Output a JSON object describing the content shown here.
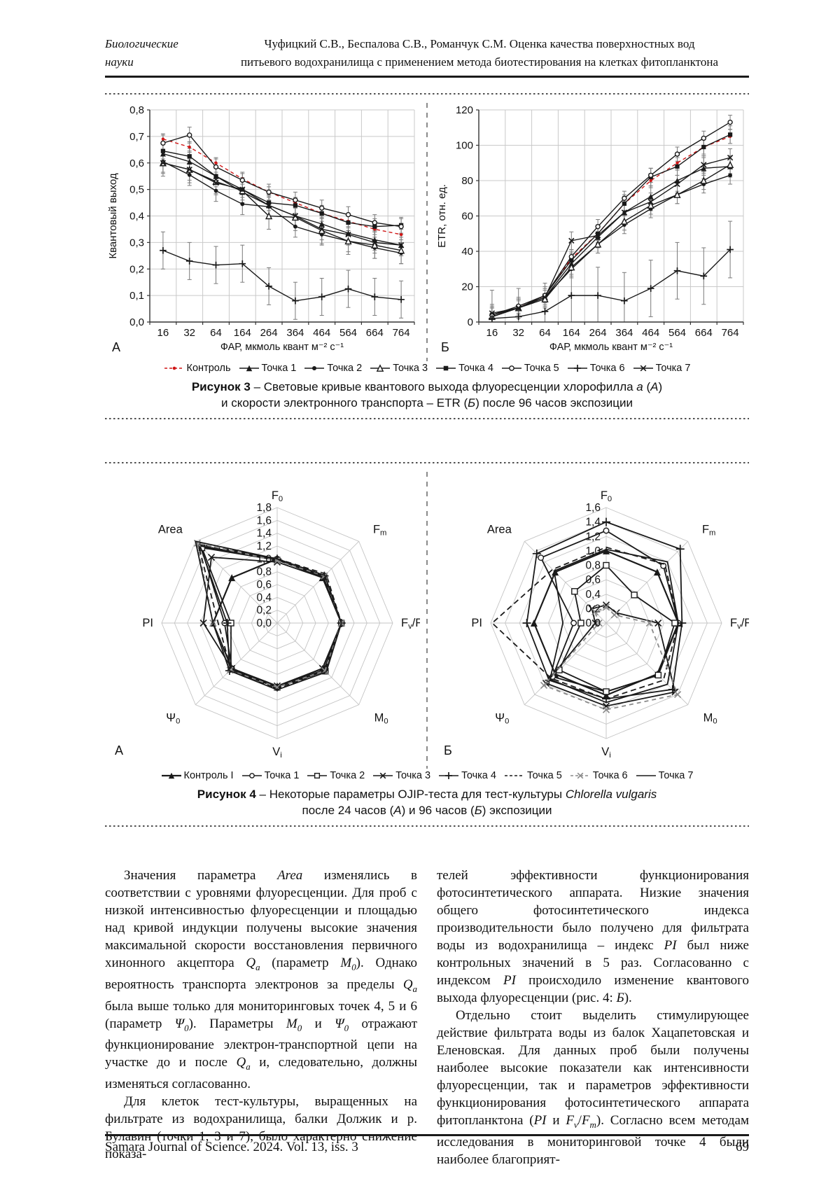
{
  "header": {
    "section_line1": "Биологические",
    "section_line2": "науки",
    "title_line1": "Чуфицкий С.В., Беспалова С.В., Романчук С.М. Оценка качества поверхностных вод",
    "title_line2": "питьевого водохранилища с применением метода биотестирования на клетках фитопланктона"
  },
  "figure3": {
    "caption_line1": "[b]Рисунок 3[/b] – Световые кривые квантового выхода флуоресценции хлорофилла [i]a[/i] ([i]А[/i])",
    "caption_line2": "и скорости электронного транспорта – ETR ([i]Б[/i]) после 96 часов экспозиции"
  },
  "figure4": {
    "caption_line1": "[b]Рисунок 4[/b] – Некоторые параметры OJIP-теста для тест-культуры [i]Chlorella vulgaris[/i]",
    "caption_line2": "после 24 часов ([i]А[/i]) и 96 часов ([i]Б[/i]) экспозиции"
  },
  "chart_data": [
    {
      "id": "fig3A",
      "type": "line",
      "panel_label": "А",
      "xlabel": "ФАР, мкмоль квант м⁻² с⁻¹",
      "ylabel": "Квантовый выход",
      "categories": [
        "16",
        "32",
        "64",
        "164",
        "264",
        "364",
        "464",
        "564",
        "664",
        "764"
      ],
      "ylim": [
        0,
        0.8
      ],
      "yticks": [
        [
          0,
          "0,0"
        ],
        [
          0.1,
          "0,1"
        ],
        [
          0.2,
          "0,2"
        ],
        [
          0.3,
          "0,3"
        ],
        [
          0.4,
          "0,4"
        ],
        [
          0.5,
          "0,5"
        ],
        [
          0.6,
          "0,6"
        ],
        [
          0.7,
          "0,7"
        ],
        [
          0.8,
          "0,8"
        ]
      ],
      "grid": true,
      "series": [
        {
          "name": "Контроль",
          "marker": "dot",
          "color": "#d01616",
          "dash": "5,4",
          "err": 0.02,
          "values": [
            0.69,
            0.66,
            0.6,
            0.54,
            0.49,
            0.45,
            0.41,
            0.38,
            0.35,
            0.33
          ]
        },
        {
          "name": "Точка 1",
          "marker": "tri",
          "color": "#1a1a1a",
          "err": 0.04,
          "values": [
            0.635,
            0.605,
            0.55,
            0.49,
            0.44,
            0.4,
            0.37,
            0.335,
            0.31,
            0.29
          ]
        },
        {
          "name": "Точка 2",
          "marker": "circle",
          "color": "#1a1a1a",
          "err": 0.04,
          "values": [
            0.605,
            0.555,
            0.495,
            0.445,
            0.435,
            0.36,
            0.33,
            0.305,
            0.28,
            0.26
          ]
        },
        {
          "name": "Точка 3",
          "marker": "tri-open",
          "color": "#1a1a1a",
          "err": 0.05,
          "values": [
            0.6,
            0.575,
            0.53,
            0.495,
            0.4,
            0.395,
            0.345,
            0.305,
            0.29,
            0.27
          ]
        },
        {
          "name": "Точка 4",
          "marker": "square",
          "color": "#1a1a1a",
          "err": 0.03,
          "values": [
            0.645,
            0.625,
            0.55,
            0.5,
            0.45,
            0.44,
            0.41,
            0.375,
            0.36,
            0.365
          ]
        },
        {
          "name": "Точка 5",
          "marker": "circle-open",
          "color": "#1a1a1a",
          "err": 0.03,
          "values": [
            0.675,
            0.705,
            0.585,
            0.535,
            0.49,
            0.46,
            0.43,
            0.405,
            0.375,
            0.36
          ]
        },
        {
          "name": "Точка 6",
          "marker": "plus",
          "color": "#1a1a1a",
          "err": 0.07,
          "values": [
            0.27,
            0.23,
            0.215,
            0.22,
            0.135,
            0.08,
            0.095,
            0.125,
            0.095,
            0.085
          ]
        },
        {
          "name": "Точка 7",
          "marker": "x",
          "color": "#1a1a1a",
          "err": 0.04,
          "values": [
            0.6,
            0.575,
            0.525,
            0.5,
            0.44,
            0.4,
            0.35,
            0.33,
            0.3,
            0.29
          ]
        }
      ]
    },
    {
      "id": "fig3B",
      "type": "line",
      "panel_label": "Б",
      "xlabel": "ФАР, мкмоль квант м⁻² с⁻¹",
      "ylabel": "ETR, отн. ед.",
      "categories": [
        "16",
        "32",
        "64",
        "164",
        "264",
        "364",
        "464",
        "564",
        "664",
        "764"
      ],
      "ylim": [
        0,
        120
      ],
      "yticks": [
        [
          0,
          "0"
        ],
        [
          20,
          "20"
        ],
        [
          40,
          "40"
        ],
        [
          60,
          "60"
        ],
        [
          80,
          "80"
        ],
        [
          100,
          "100"
        ],
        [
          120,
          "120"
        ]
      ],
      "grid": true,
      "series": [
        {
          "name": "Контроль",
          "marker": "dot",
          "color": "#d01616",
          "dash": "5,4",
          "err": 4,
          "values": [
            4,
            8,
            15,
            36,
            50,
            67,
            80,
            90,
            99,
            105
          ]
        },
        {
          "name": "Точка 1",
          "marker": "tri",
          "color": "#1a1a1a",
          "err": 6,
          "values": [
            3,
            8,
            14,
            33,
            48,
            62,
            71,
            80,
            87,
            88
          ]
        },
        {
          "name": "Точка 2",
          "marker": "circle",
          "color": "#1a1a1a",
          "err": 5,
          "values": [
            3,
            8,
            14,
            30,
            44,
            55,
            64,
            72,
            78,
            83
          ]
        },
        {
          "name": "Точка 3",
          "marker": "tri-open",
          "color": "#1a1a1a",
          "err": 5,
          "values": [
            3,
            8,
            13,
            31,
            44,
            57,
            66,
            72,
            80,
            89
          ]
        },
        {
          "name": "Точка 4",
          "marker": "square",
          "color": "#1a1a1a",
          "err": 5,
          "values": [
            4,
            8,
            15,
            35,
            50,
            67,
            82,
            88,
            99,
            106
          ]
        },
        {
          "name": "Точка 5",
          "marker": "circle-open",
          "color": "#1a1a1a",
          "err": 4,
          "values": [
            4,
            9,
            15,
            37,
            54,
            70,
            83,
            95,
            104,
            113
          ]
        },
        {
          "name": "Точка 6",
          "marker": "plus",
          "color": "#1a1a1a",
          "err": 16,
          "values": [
            2,
            3,
            6,
            15,
            15,
            12,
            19,
            29,
            26,
            41
          ]
        },
        {
          "name": "Точка 7",
          "marker": "x",
          "color": "#1a1a1a",
          "err": 5,
          "values": [
            5,
            8,
            14,
            46,
            49,
            62,
            68,
            78,
            89,
            93
          ]
        }
      ]
    },
    {
      "id": "fig4A",
      "type": "radar",
      "panel_label": "А",
      "axes": [
        "F[sub]0[/sub]",
        "F[sub]m[/sub]",
        "F[sub]v[/sub]/F[sub]m[/sub]",
        "M[sub]0[/sub]",
        "V[sub]i[/sub]",
        "Ψ[sub]0[/sub]",
        "PI",
        "Area"
      ],
      "rmax": 1.8,
      "rstep": 0.2,
      "rticks": [
        [
          1.8,
          "1,8"
        ],
        [
          1.6,
          "1,6"
        ],
        [
          1.4,
          "1,4"
        ],
        [
          1.2,
          "1,2"
        ],
        [
          1.0,
          "1,0"
        ],
        [
          0.8,
          "0,8"
        ],
        [
          0.6,
          "0,6"
        ],
        [
          0.4,
          "0,4"
        ],
        [
          0.2,
          "0,2"
        ],
        [
          0,
          "0,0"
        ]
      ],
      "series": [
        {
          "name": "Контроль I",
          "marker": "tri",
          "color": "#1a1a1a",
          "width": 2.2,
          "values": [
            1.0,
            1.0,
            1.0,
            1.0,
            1.0,
            1.0,
            1.0,
            1.0
          ]
        },
        {
          "name": "Точка 1",
          "marker": "circle-open",
          "color": "#1a1a1a",
          "values": [
            1.0,
            1.02,
            1.0,
            1.03,
            1.0,
            1.0,
            0.82,
            1.68
          ]
        },
        {
          "name": "Точка 2",
          "marker": "square-open",
          "color": "#1a1a1a",
          "values": [
            0.98,
            1.03,
            1.0,
            1.06,
            1.0,
            1.02,
            0.72,
            1.66
          ]
        },
        {
          "name": "Точка 3",
          "marker": "x",
          "color": "#1a1a1a",
          "values": [
            0.95,
            1.0,
            1.0,
            1.0,
            0.98,
            1.0,
            1.15,
            1.45
          ]
        },
        {
          "name": "Точка 4",
          "marker": "plus",
          "color": "#1a1a1a",
          "values": [
            1.0,
            1.04,
            1.0,
            1.04,
            1.0,
            1.05,
            0.78,
            1.7
          ]
        },
        {
          "name": "Точка 5",
          "marker": null,
          "color": "#1a1a1a",
          "dash": "8,5",
          "values": [
            1.0,
            1.08,
            1.0,
            1.05,
            1.03,
            1.02,
            0.92,
            1.74
          ]
        },
        {
          "name": "Точка 6",
          "marker": "x",
          "color": "#8a8a8a",
          "dash": "6,5",
          "values": [
            0.97,
            1.04,
            1.0,
            1.05,
            1.0,
            1.04,
            1.0,
            1.76
          ]
        },
        {
          "name": "Точка 7",
          "marker": null,
          "color": "#1a1a1a",
          "values": [
            1.0,
            1.05,
            1.0,
            1.08,
            1.04,
            1.05,
            1.0,
            1.8
          ]
        }
      ]
    },
    {
      "id": "fig4B",
      "type": "radar",
      "panel_label": "Б",
      "axes": [
        "F[sub]0[/sub]",
        "F[sub]m[/sub]",
        "F[sub]v[/sub]/F[sub]m[/sub]",
        "M[sub]0[/sub]",
        "V[sub]i[/sub]",
        "Ψ[sub]0[/sub]",
        "PI",
        "Area"
      ],
      "rmax": 1.6,
      "rstep": 0.2,
      "rticks": [
        [
          1.6,
          "1,6"
        ],
        [
          1.4,
          "1,4"
        ],
        [
          1.2,
          "1,2"
        ],
        [
          1.0,
          "1,0"
        ],
        [
          0.8,
          "0,8"
        ],
        [
          0.6,
          "0,6"
        ],
        [
          0.4,
          "0,4"
        ],
        [
          0.2,
          "0,2"
        ],
        [
          0,
          "0,0"
        ]
      ],
      "series": [
        {
          "name": "Контроль I",
          "marker": "tri",
          "color": "#1a1a1a",
          "width": 2.2,
          "values": [
            1.0,
            1.0,
            1.0,
            1.0,
            1.0,
            1.0,
            1.0,
            1.0
          ]
        },
        {
          "name": "Точка 1",
          "marker": "circle-open",
          "color": "#1a1a1a",
          "values": [
            1.28,
            1.12,
            1.0,
            1.02,
            0.95,
            1.05,
            0.45,
            1.28
          ]
        },
        {
          "name": "Точка 2",
          "marker": "square-open",
          "color": "#1a1a1a",
          "values": [
            0.8,
            0.55,
            0.95,
            1.02,
            0.95,
            0.92,
            0.35,
            0.62
          ]
        },
        {
          "name": "Точка 3",
          "marker": "x",
          "color": "#1a1a1a",
          "values": [
            0.25,
            0.2,
            0.72,
            1.35,
            1.15,
            1.18,
            0.15,
            0.28
          ]
        },
        {
          "name": "Точка 4",
          "marker": "plus",
          "color": "#1a1a1a",
          "values": [
            1.4,
            1.45,
            1.05,
            1.3,
            1.05,
            1.12,
            1.1,
            1.36
          ]
        },
        {
          "name": "Точка 5",
          "marker": null,
          "color": "#1a1a1a",
          "dash": "8,5",
          "values": [
            1.05,
            1.15,
            1.0,
            1.12,
            1.05,
            1.08,
            1.58,
            1.05
          ]
        },
        {
          "name": "Точка 6",
          "marker": "x",
          "color": "#8a8a8a",
          "dash": "6,5",
          "values": [
            0.22,
            0.16,
            0.6,
            1.4,
            1.2,
            1.22,
            0.1,
            0.22
          ]
        },
        {
          "name": "Точка 7",
          "marker": null,
          "color": "#1a1a1a",
          "values": [
            1.02,
            1.2,
            1.0,
            1.2,
            1.1,
            1.1,
            0.6,
            1.02
          ]
        }
      ]
    }
  ],
  "body": {
    "left_col": [
      "Значения параметра [i]Area[/i] изменялись в соответствии с уровнями флуоресценции. Для проб с низкой интенсивностью флуоресценции и площадью над кривой индукции получены высокие значения максимальной скорости восстановления первичного хинонного акцептора [i]Q[sub]a[/sub][/i] (параметр [i]M[sub]0[/sub][/i]). Однако вероятность транспорта электронов за пределы [i]Q[sub]a[/sub][/i] была выше только для мониторинговых точек 4, 5 и 6 (параметр [i]Ψ[sub]0[/sub][/i]). Параметры [i]M[sub]0[/sub][/i] и [i]Ψ[sub]0[/sub][/i] отражают функционирование электрон-транспортной цепи на участке до и после [i]Q[sub]a[/sub][/i] и, следовательно, должны изменяться согласованно.",
      "Для клеток тест-культуры, выращенных на фильтрате из водохранилища, балки Должик и р. Булавин (точки 1, 3 и 7), было характерно снижение показа-"
    ],
    "right_col": [
      "телей эффективности функционирования фотосинтетического аппарата. Низкие значения общего фотосинтетического индекса производительности было получено для фильтрата воды из водохранилища – индекс [i]PI[/i] был ниже контрольных значений в 5 раз. Согласованно с индексом [i]PI[/i] происходило изменение квантового выхода флуоресценции (рис. 4: [i]Б[/i]).",
      "Отдельно стоит выделить стимулирующее действие фильтрата воды из балок Хацапетовская и Еленовская. Для данных проб были получены наиболее высокие показатели как интенсивности флуоресценции, так и параметров эффективности функционирования фотосинтетического аппарата фитопланктона ([i]PI[/i] и [i]F[sub]v[/sub][/i]/[i]F[sub]m[/sub][/i]). Согласно всем методам исследования в мониторинговой точке 4 были наиболее благоприят-"
    ]
  },
  "footer": {
    "journal": "Samara Journal of Science. 2024. Vol. 13, iss. 3",
    "page": "69"
  }
}
